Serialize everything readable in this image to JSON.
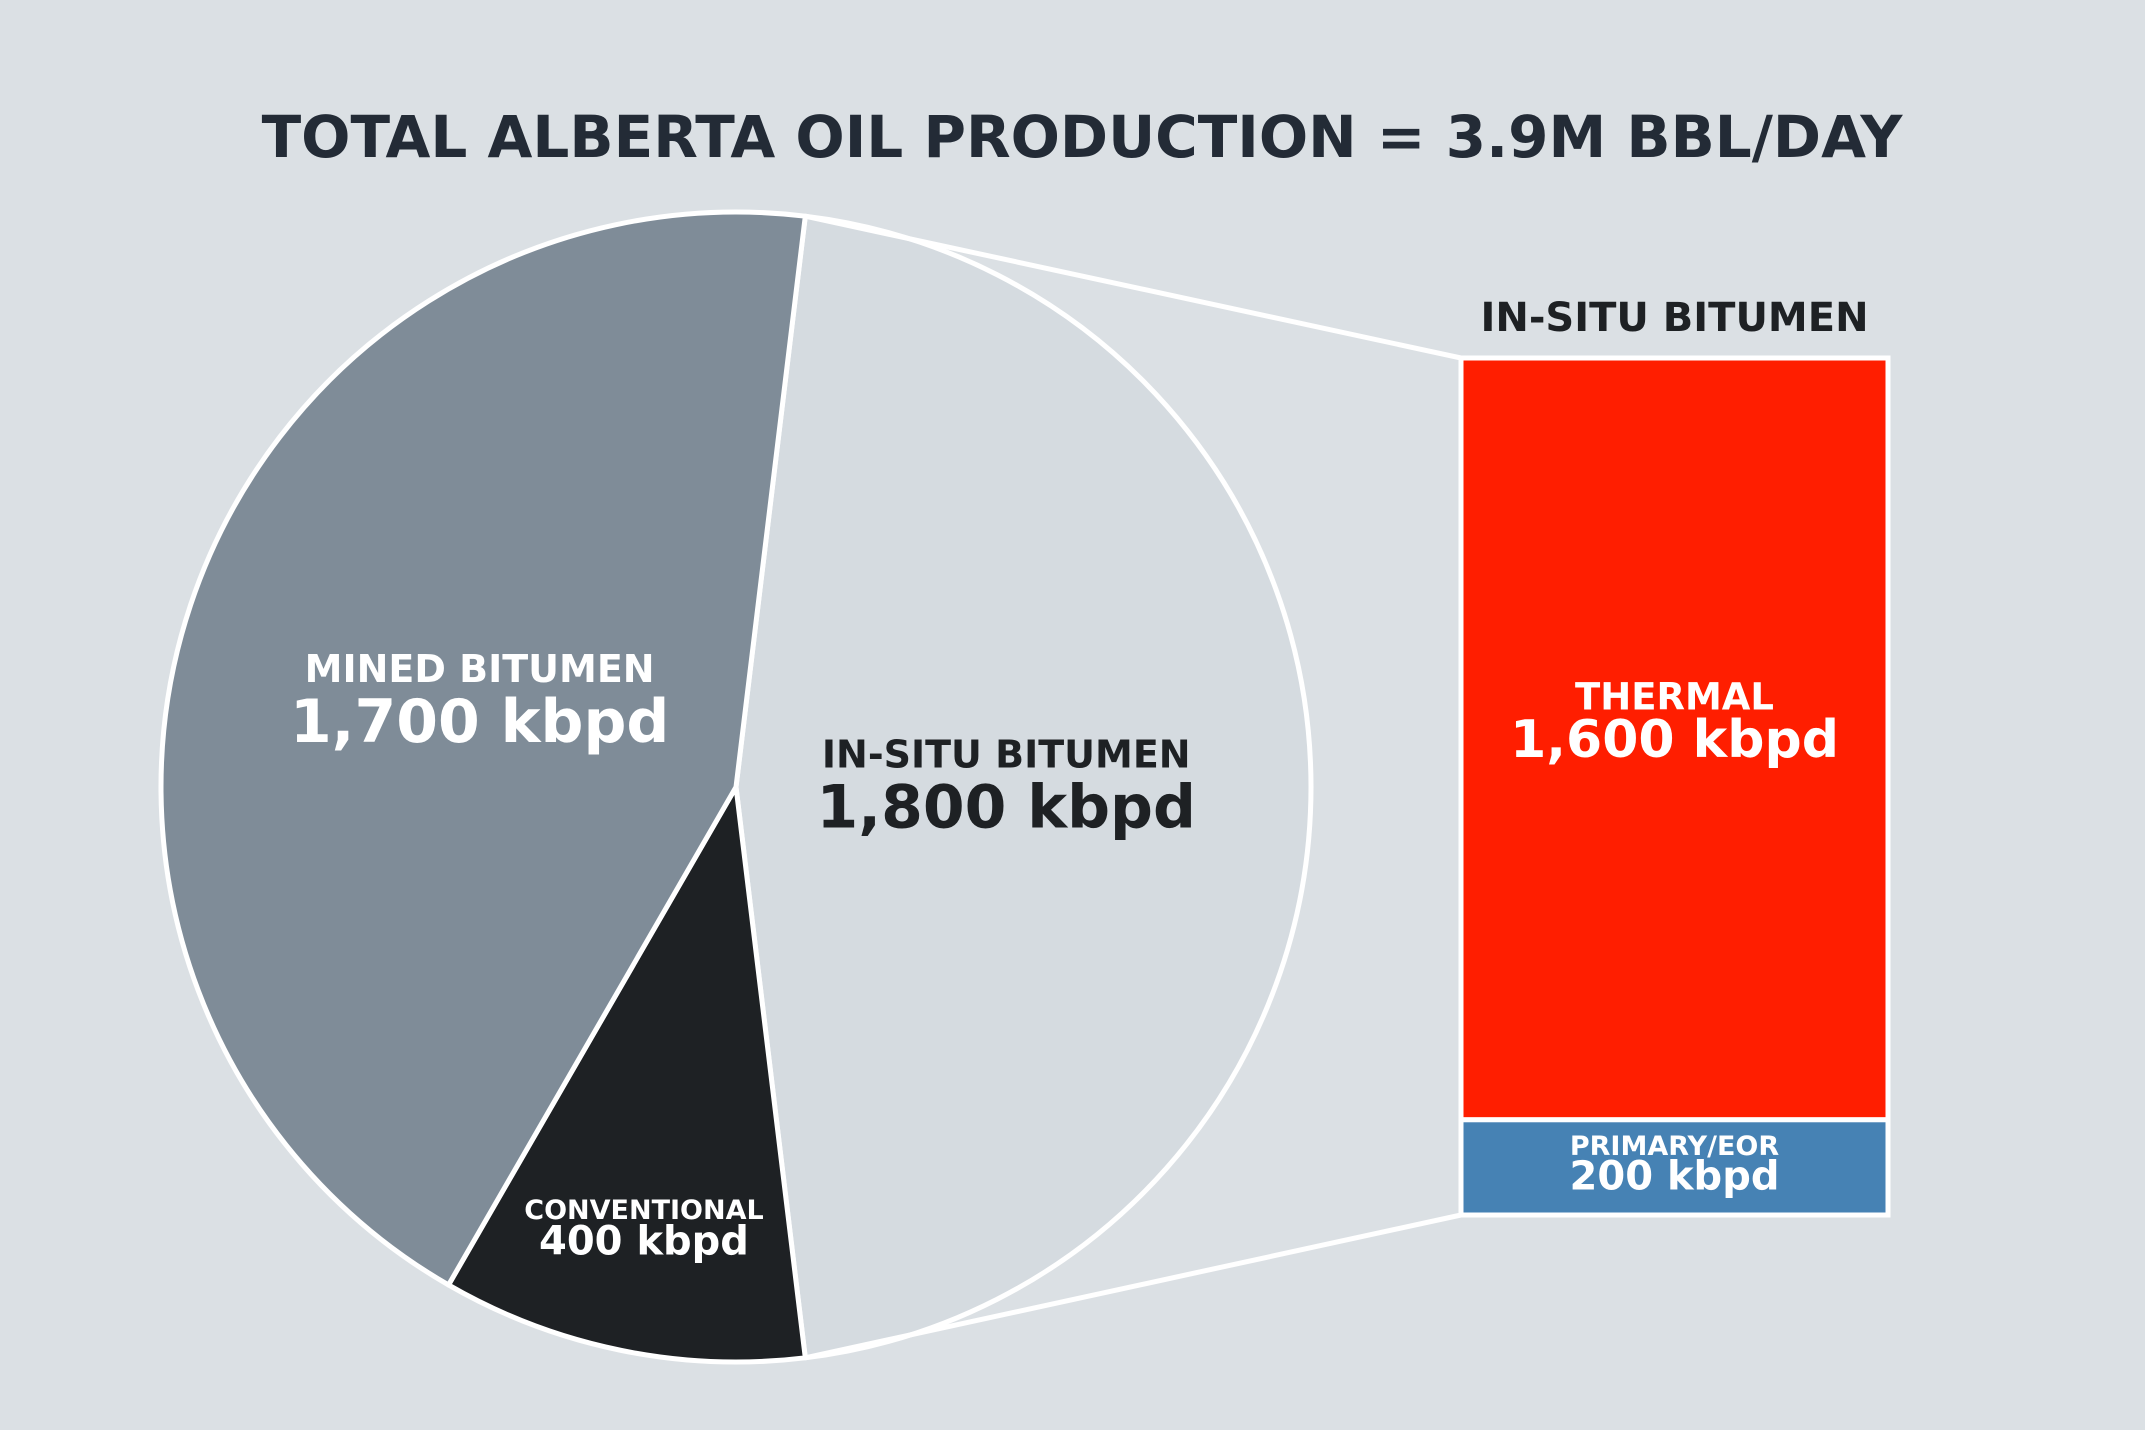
{
  "chart_data": [
    {
      "type": "pie",
      "title": "TOTAL ALBERTA OIL PRODUCTION = 3.9M BBL/DAY",
      "categories": [
        "IN-SITU BITUMEN",
        "CONVENTIONAL",
        "MINED BITUMEN"
      ],
      "values": [
        1800,
        400,
        1700
      ],
      "value_labels": [
        "1,800 kbpd",
        "400 kbpd",
        "1,700 kbpd"
      ],
      "colors": [
        "#d5dbe0",
        "#1e2124",
        "#7f8c98"
      ],
      "label_colors": [
        "#1e2124",
        "#ffffff",
        "#ffffff"
      ]
    },
    {
      "type": "stacked-bar",
      "title": "IN-SITU BITUMEN",
      "categories": [
        "THERMAL",
        "PRIMARY/EOR"
      ],
      "values": [
        1600,
        200
      ],
      "value_labels": [
        "1,600 kbpd",
        "200 kbpd"
      ],
      "colors": [
        "#ff1e00",
        "#4682b4"
      ]
    }
  ]
}
